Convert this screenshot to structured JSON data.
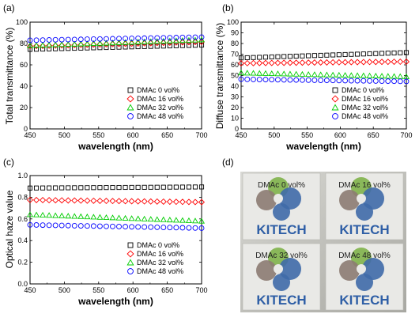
{
  "chart_data": [
    {
      "panel": "(a)",
      "type": "scatter",
      "xlabel": "wavelength (nm)",
      "ylabel": "Total transmittance (%)",
      "xlim": [
        450,
        700
      ],
      "ylim": [
        0,
        100
      ],
      "xticks": [
        450,
        500,
        550,
        600,
        650,
        700
      ],
      "yticks": [
        0,
        20,
        40,
        60,
        80,
        100
      ],
      "legend_position": "bottom-right",
      "series": [
        {
          "name": "DMAc   0 vol%",
          "marker": "square",
          "color": "#000000",
          "y_start": 74.5,
          "y_end": 78.5
        },
        {
          "name": "DMAc 16 vol%",
          "marker": "diamond",
          "color": "#ff0000",
          "y_start": 77.5,
          "y_end": 81.5
        },
        {
          "name": "DMAc 32 vol%",
          "marker": "triangle",
          "color": "#00cc00",
          "y_start": 78.0,
          "y_end": 83.5
        },
        {
          "name": "DMAc 48 vol%",
          "marker": "circle",
          "color": "#0000ff",
          "y_start": 83.0,
          "y_end": 86.0
        }
      ]
    },
    {
      "panel": "(b)",
      "type": "scatter",
      "xlabel": "wavelength (nm)",
      "ylabel": "Diffuse transmittance (%)",
      "xlim": [
        450,
        700
      ],
      "ylim": [
        0,
        100
      ],
      "xticks": [
        450,
        500,
        550,
        600,
        650,
        700
      ],
      "yticks": [
        0,
        10,
        20,
        30,
        40,
        50,
        60,
        70,
        80,
        90,
        100
      ],
      "legend_position": "bottom-right",
      "series": [
        {
          "name": "DMAc   0 vol%",
          "marker": "square",
          "color": "#000000",
          "y_start": 66.5,
          "y_end": 71.5
        },
        {
          "name": "DMAc 16 vol%",
          "marker": "diamond",
          "color": "#ff0000",
          "y_start": 61.5,
          "y_end": 63.0
        },
        {
          "name": "DMAc 32 vol%",
          "marker": "triangle",
          "color": "#00cc00",
          "y_start": 52.5,
          "y_end": 49.0
        },
        {
          "name": "DMAc 48 vol%",
          "marker": "circle",
          "color": "#0000ff",
          "y_start": 46.5,
          "y_end": 44.5
        }
      ]
    },
    {
      "panel": "(c)",
      "type": "scatter",
      "xlabel": "wavelength (nm)",
      "ylabel": "Optical haze value",
      "xlim": [
        450,
        700
      ],
      "ylim": [
        0,
        1.0
      ],
      "xticks": [
        450,
        500,
        550,
        600,
        650,
        700
      ],
      "yticks": [
        0.0,
        0.2,
        0.4,
        0.6,
        0.8,
        1.0
      ],
      "legend_position": "bottom-right",
      "series": [
        {
          "name": "DMAc   0 vol%",
          "marker": "square",
          "color": "#000000",
          "y_start": 0.885,
          "y_end": 0.895
        },
        {
          "name": "DMAc 16 vol%",
          "marker": "diamond",
          "color": "#ff0000",
          "y_start": 0.775,
          "y_end": 0.755
        },
        {
          "name": "DMAc 32 vol%",
          "marker": "triangle",
          "color": "#00cc00",
          "y_start": 0.64,
          "y_end": 0.58
        },
        {
          "name": "DMAc 48 vol%",
          "marker": "circle",
          "color": "#0000ff",
          "y_start": 0.545,
          "y_end": 0.515
        }
      ]
    }
  ],
  "photo_panel": {
    "panel": "(d)",
    "samples": [
      {
        "label": "DMAc 0 vol%",
        "logo_text": "KITECH"
      },
      {
        "label": "DMAc 16 vol%",
        "logo_text": "KITECH"
      },
      {
        "label": "DMAc 32 vol%",
        "logo_text": "KITECH"
      },
      {
        "label": "DMAc 48 vol%",
        "logo_text": "KITECH"
      }
    ]
  }
}
